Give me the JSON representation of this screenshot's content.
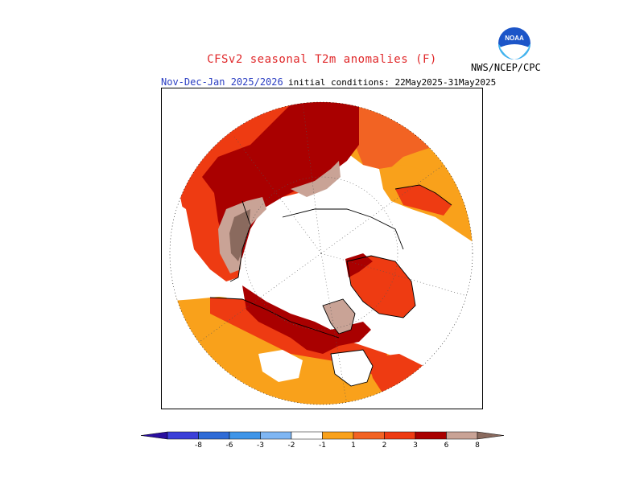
{
  "header": {
    "title": "CFSv2 seasonal T2m anomalies (F)",
    "period": "Nov-Dec-Jan 2025/2026",
    "initial_conditions": "initial conditions: 22May2025-31May2025",
    "agency": "NWS/NCEP/CPC",
    "logo_text": "NOAA"
  },
  "colors": {
    "title": "#e0282a",
    "period": "#2b3ec2",
    "bin_1_2": "#f9a11b",
    "bin_2_3": "#f26323",
    "bin_3_6": "#ee3b12",
    "bin_6_8": "#a90000",
    "bin_gt_8": "#c9a396",
    "bin_extreme": "#8a6a5e"
  },
  "legend": {
    "ticks": [
      "-8",
      "-6",
      "-3",
      "-2",
      "-1",
      "1",
      "2",
      "3",
      "6",
      "8"
    ],
    "bins": [
      {
        "color": "#2a0ea0"
      },
      {
        "color": "#3b3fd8"
      },
      {
        "color": "#2f6bd6"
      },
      {
        "color": "#3f95e8"
      },
      {
        "color": "#7fb6f3"
      },
      {
        "color": "#ffffff"
      },
      {
        "color": "#f9a11b"
      },
      {
        "color": "#f26323"
      },
      {
        "color": "#ee3b12"
      },
      {
        "color": "#a90000"
      },
      {
        "color": "#c9a396"
      },
      {
        "color": "#8a6a5e"
      }
    ]
  }
}
